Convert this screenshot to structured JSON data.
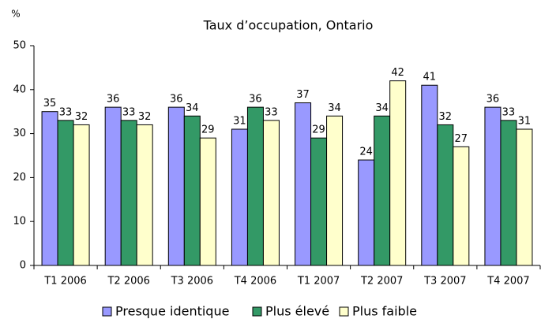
{
  "chart_data": {
    "type": "bar",
    "title": "Taux d’occupation, Ontario",
    "y_label": "%",
    "categories": [
      "T1 2006",
      "T2 2006",
      "T3 2006",
      "T4 2006",
      "T1 2007",
      "T2 2007",
      "T3 2007",
      "T4 2007"
    ],
    "series": [
      {
        "name": "Presque identique",
        "color": "#9999ff",
        "values": [
          35,
          36,
          36,
          31,
          37,
          24,
          41,
          36
        ]
      },
      {
        "name": "Plus élevé",
        "color": "#339966",
        "values": [
          33,
          33,
          34,
          36,
          29,
          34,
          32,
          33
        ]
      },
      {
        "name": "Plus faible",
        "color": "#ffffcc",
        "values": [
          32,
          32,
          29,
          33,
          34,
          42,
          27,
          31
        ]
      }
    ],
    "ylim": [
      0,
      50
    ],
    "yticks": [
      0,
      10,
      20,
      30,
      40,
      50
    ],
    "grid": false,
    "legend": "bottom"
  }
}
